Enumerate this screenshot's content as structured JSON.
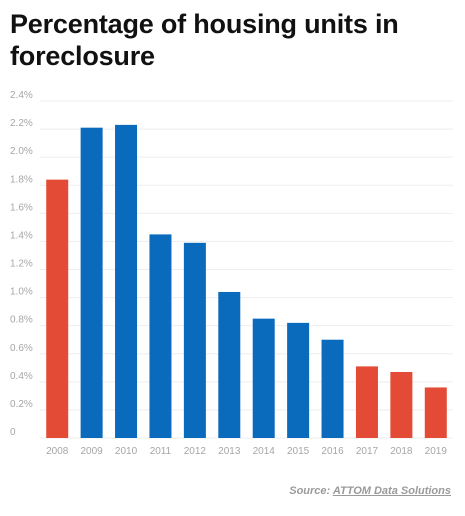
{
  "chart_data": {
    "type": "bar",
    "title": "Percentage of housing units in foreclosure",
    "categories": [
      "2008",
      "2009",
      "2010",
      "2011",
      "2012",
      "2013",
      "2014",
      "2015",
      "2016",
      "2017",
      "2018",
      "2019"
    ],
    "values": [
      1.84,
      2.21,
      2.23,
      1.45,
      1.39,
      1.04,
      0.85,
      0.82,
      0.7,
      0.51,
      0.47,
      0.36
    ],
    "highlight": [
      "2008",
      "2017",
      "2018",
      "2019"
    ],
    "ylim": [
      0,
      2.4
    ],
    "yticks": [
      0,
      0.2,
      0.4,
      0.6,
      0.8,
      1.0,
      1.2,
      1.4,
      1.6,
      1.8,
      2.0,
      2.2,
      2.4
    ],
    "ytick_labels": [
      "0",
      "0.2%",
      "0.4%",
      "0.6%",
      "0.8%",
      "1.0%",
      "1.2%",
      "1.4%",
      "1.6%",
      "1.8%",
      "2.0%",
      "2.2%",
      "2.4%"
    ],
    "xlabel": "",
    "ylabel": "",
    "grid": true,
    "legend": "none",
    "colors": {
      "default": "#0a6bbd",
      "highlight": "#e44b36",
      "grid": "#eeeeee",
      "tick_text": "#a6a6a6"
    }
  },
  "source": {
    "prefix": "Source: ",
    "name": "ATTOM Data Solutions"
  }
}
